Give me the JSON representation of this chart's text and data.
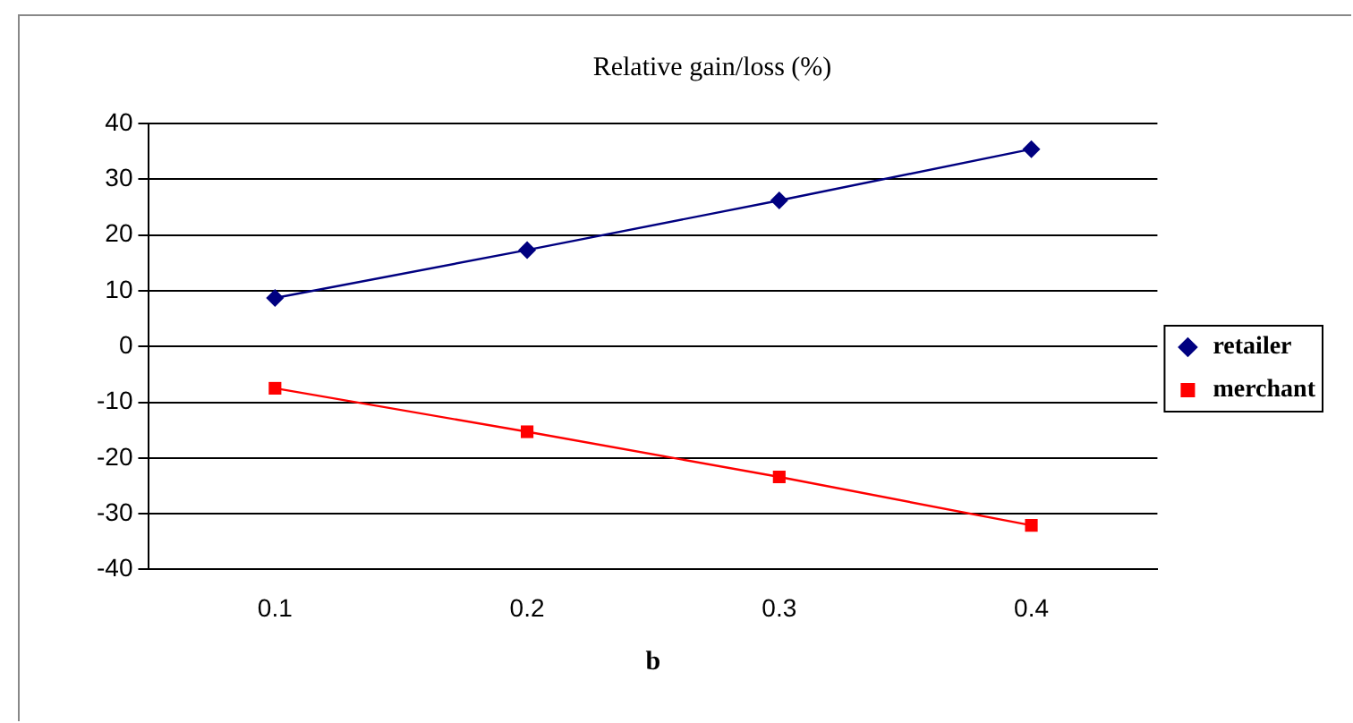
{
  "chart_data": {
    "type": "line",
    "title": "Relative gain/loss (%)",
    "xlabel": "b",
    "categories": [
      "0.1",
      "0.2",
      "0.3",
      "0.4"
    ],
    "series": [
      {
        "name": "retailer",
        "color": "#000080",
        "marker": "diamond",
        "values": [
          8.7,
          17.3,
          26.2,
          35.4
        ]
      },
      {
        "name": "merchant",
        "color": "#ff0000",
        "marker": "square",
        "values": [
          -7.5,
          -15.3,
          -23.4,
          -32.1
        ]
      }
    ],
    "ylim": [
      -40,
      40
    ],
    "yticks": [
      -40,
      -30,
      -20,
      -10,
      0,
      10,
      20,
      30,
      40
    ],
    "grid": "y",
    "legend": "right"
  }
}
